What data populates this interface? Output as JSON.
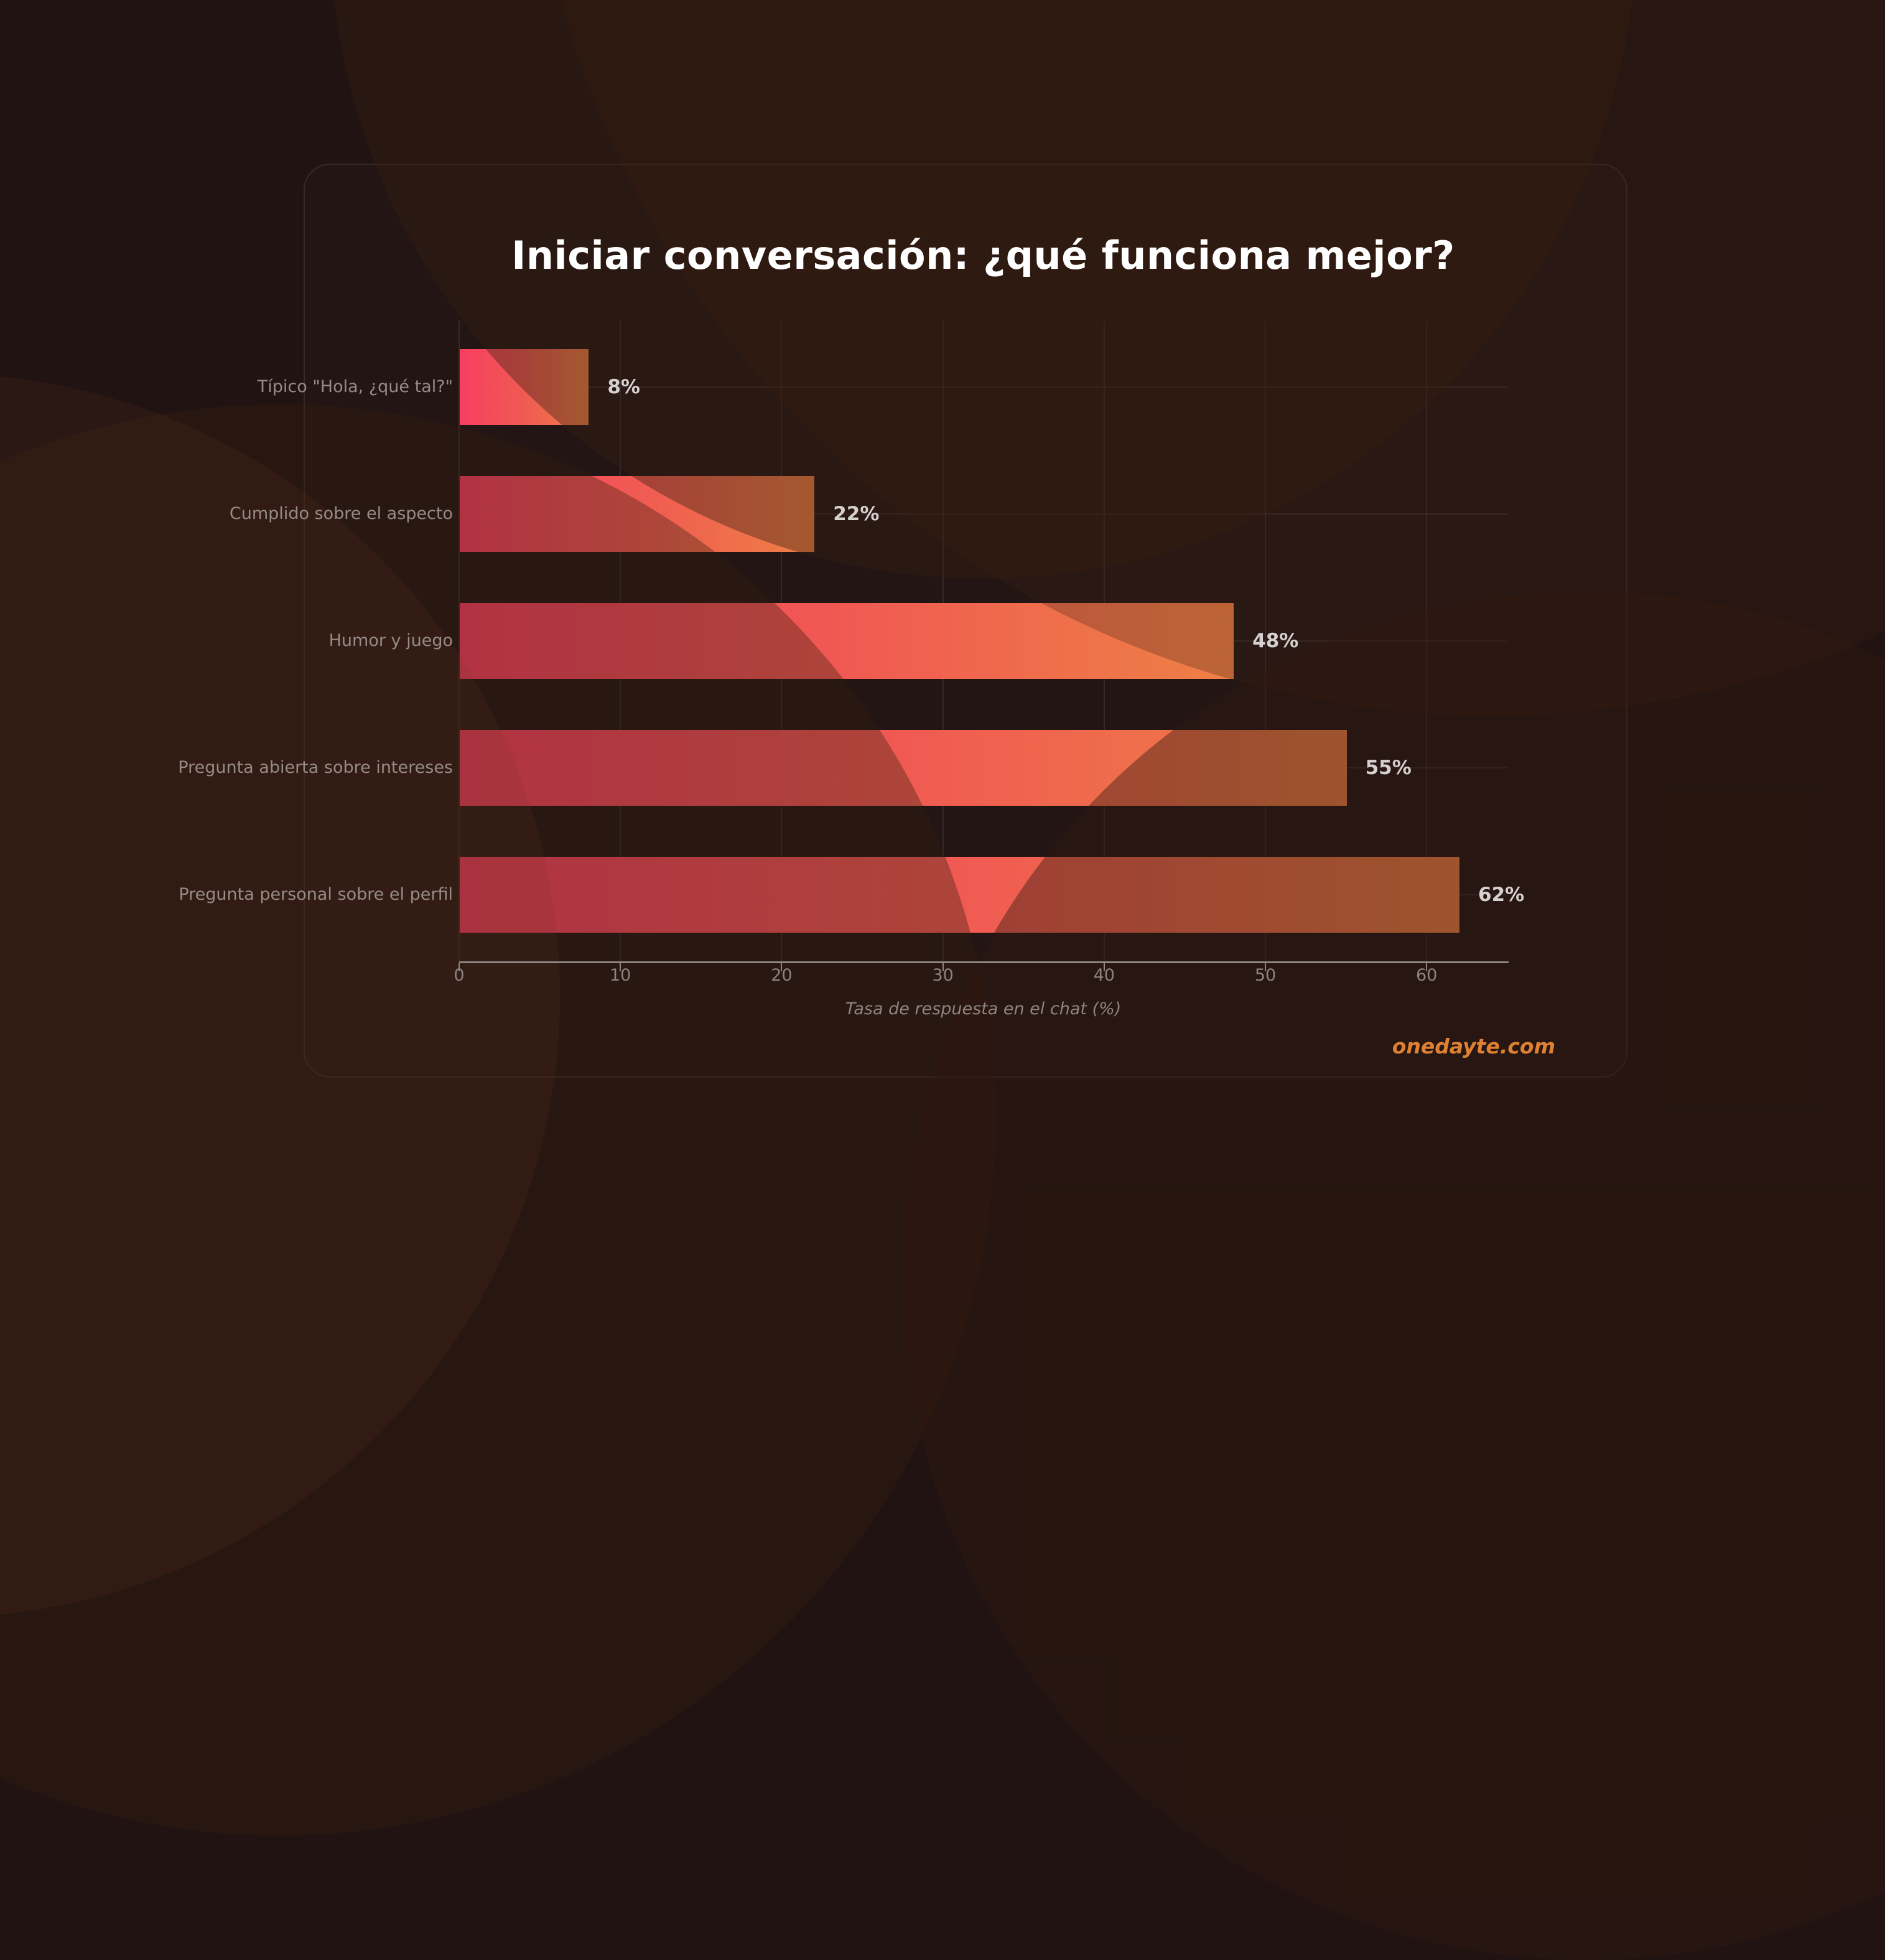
{
  "page": {
    "watermark": "onedayte.com"
  },
  "chart_data": {
    "type": "bar",
    "orientation": "horizontal",
    "title": "Iniciar conversación: ¿qué funciona mejor?",
    "categories": [
      "Típico \"Hola, ¿qué tal?\"",
      "Cumplido sobre el aspecto",
      "Humor y juego",
      "Pregunta abierta sobre intereses",
      "Pregunta personal sobre el perfil"
    ],
    "values": [
      8,
      22,
      48,
      55,
      62
    ],
    "value_labels": [
      "8%",
      "22%",
      "48%",
      "55%",
      "62%"
    ],
    "xlabel": "Tasa de respuesta en el chat (%)",
    "xticks": [
      0,
      10,
      20,
      30,
      40,
      50,
      60
    ],
    "xlim": [
      0,
      65
    ],
    "grid": true,
    "legend": null,
    "colors": {
      "background": "#201312",
      "bar_gradient_start": "#f73e61",
      "bar_gradient_mid": "#f05a52",
      "bar_gradient_end": "#ee8045",
      "title": "#ffffff",
      "category_label": "#968b87",
      "value_label": "#d5d1cf",
      "tick_label": "#8d8380",
      "axis": "#8e8683",
      "watermark": "#df8132"
    }
  }
}
